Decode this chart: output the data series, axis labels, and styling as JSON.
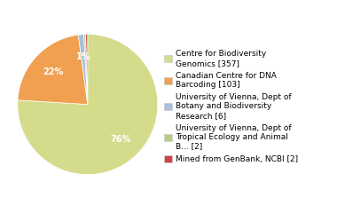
{
  "labels": [
    "Centre for Biodiversity\nGenomics [357]",
    "Canadian Centre for DNA\nBarcoding [103]",
    "University of Vienna, Dept of\nBotany and Biodiversity\nResearch [6]",
    "University of Vienna, Dept of\nTropical Ecology and Animal\nB... [2]",
    "Mined from GenBank, NCBI [2]"
  ],
  "values": [
    357,
    103,
    6,
    2,
    2
  ],
  "colors": [
    "#d4dc8c",
    "#f0a050",
    "#a8c0d8",
    "#b8cc88",
    "#cc4444"
  ],
  "startangle": 90,
  "pctdistance": 0.68,
  "background_color": "#ffffff",
  "fontsize": 7.0,
  "legend_fontsize": 6.5
}
